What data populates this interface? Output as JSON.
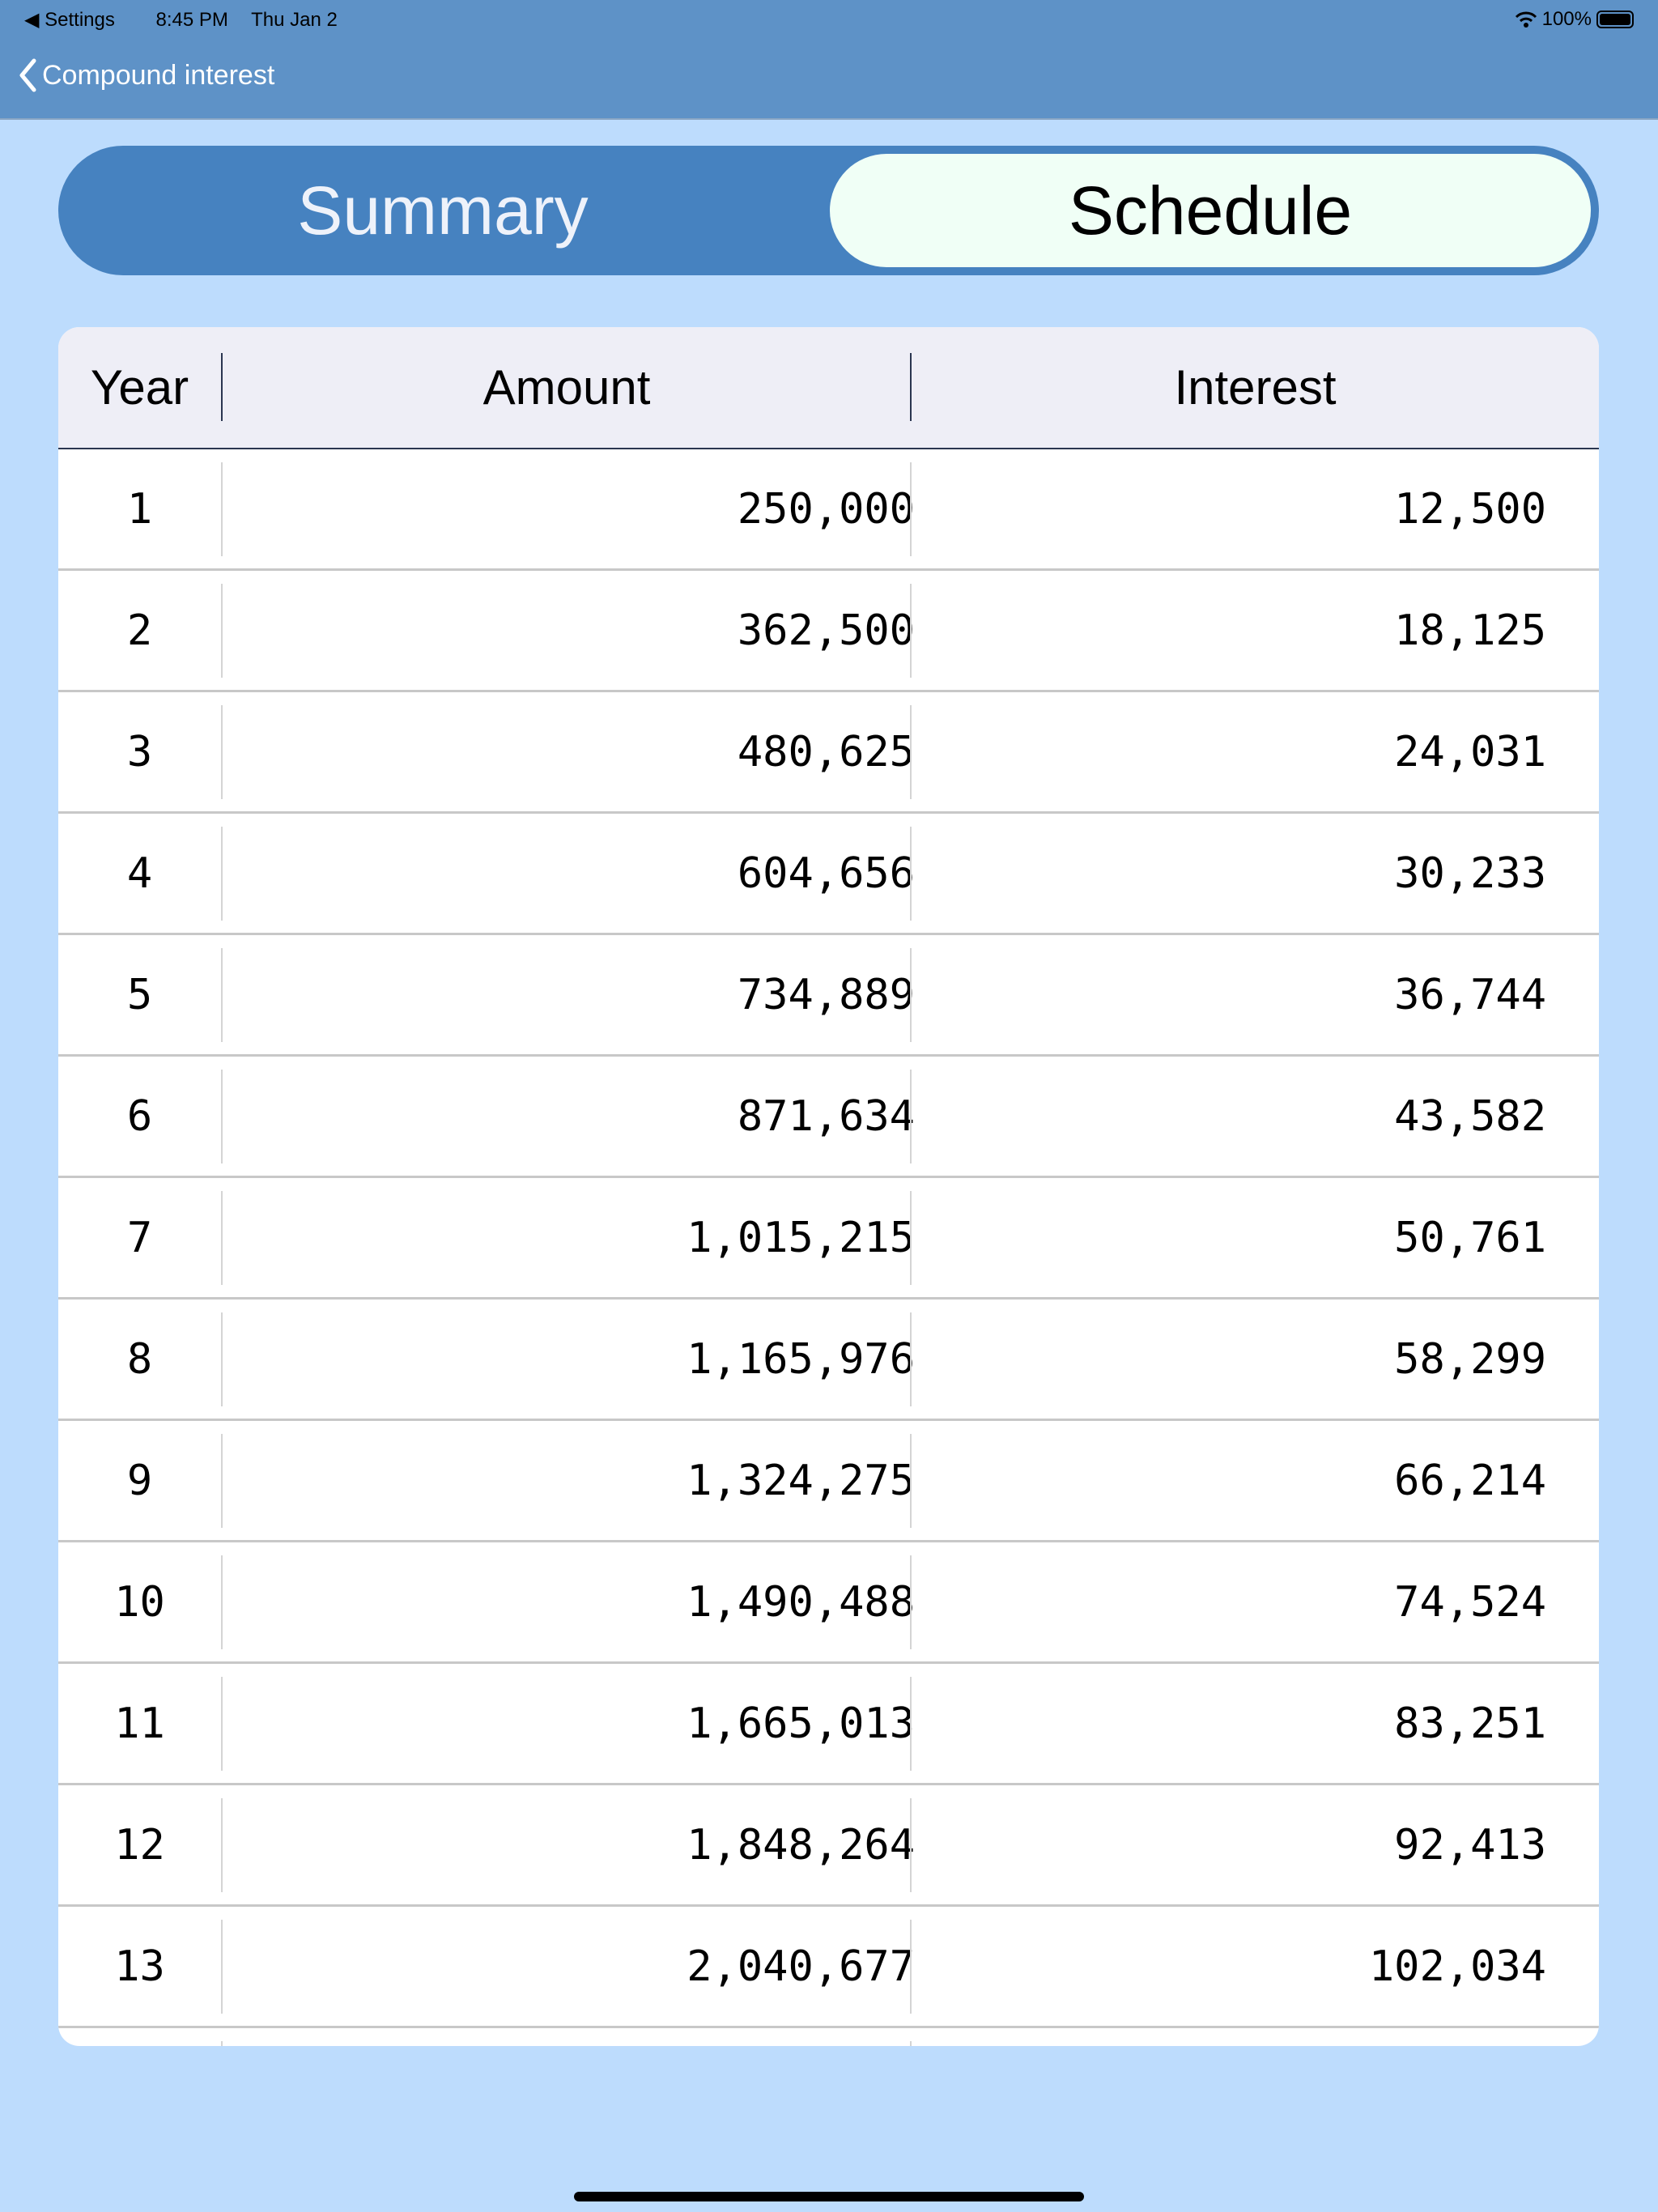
{
  "status_bar": {
    "back_app": "Settings",
    "time": "8:45 PM",
    "date": "Thu Jan 2",
    "battery": "100%",
    "battery_level": 1.0
  },
  "nav": {
    "back_label": "Compound interest"
  },
  "segmented": {
    "options": [
      "Summary",
      "Schedule"
    ],
    "selected": "Schedule"
  },
  "table": {
    "headers": [
      "Year",
      "Amount",
      "Interest"
    ],
    "rows": [
      [
        "1",
        "250,000",
        "12,500"
      ],
      [
        "2",
        "362,500",
        "18,125"
      ],
      [
        "3",
        "480,625",
        "24,031"
      ],
      [
        "4",
        "604,656",
        "30,233"
      ],
      [
        "5",
        "734,889",
        "36,744"
      ],
      [
        "6",
        "871,634",
        "43,582"
      ],
      [
        "7",
        "1,015,215",
        "50,761"
      ],
      [
        "8",
        "1,165,976",
        "58,299"
      ],
      [
        "9",
        "1,324,275",
        "66,214"
      ],
      [
        "10",
        "1,490,488",
        "74,524"
      ],
      [
        "11",
        "1,665,013",
        "83,251"
      ],
      [
        "12",
        "1,848,264",
        "92,413"
      ],
      [
        "13",
        "2,040,677",
        "102,034"
      ]
    ]
  },
  "colors": {
    "nav": "#5e92c7",
    "background": "#bddcfd",
    "segment": "#4682c0",
    "segment_selected": "#f0fff6",
    "header": "#eeeef6"
  }
}
